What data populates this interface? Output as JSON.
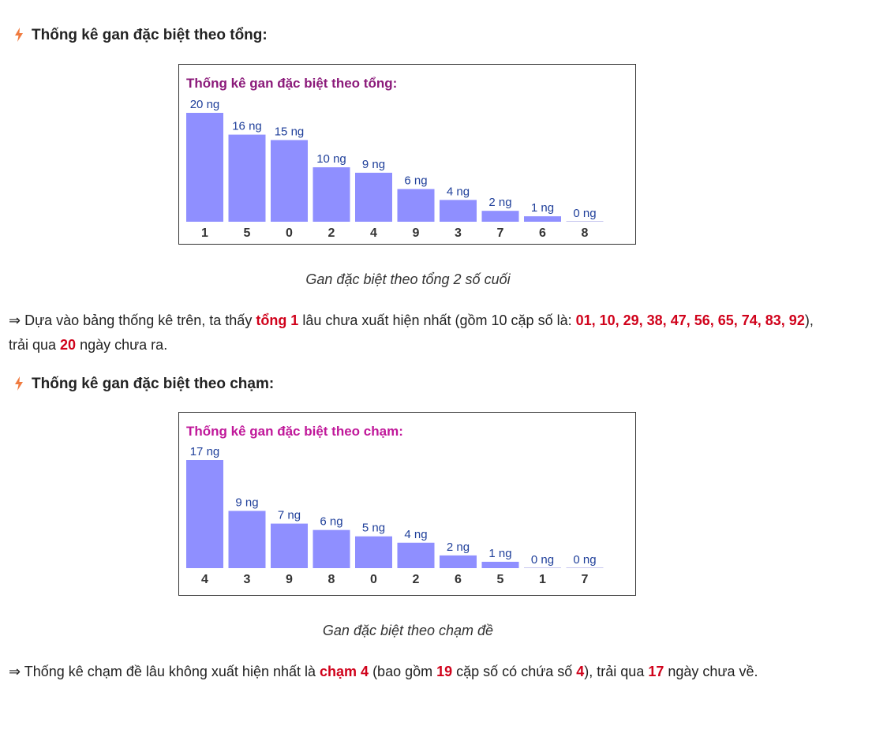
{
  "section1": {
    "heading": "Thống kê gan đặc biệt theo tổng:",
    "caption": "Gan đặc biệt theo tổng 2 số cuối",
    "para": {
      "p1": "⇒ Dựa vào bảng thống kê trên, ta thấy ",
      "h1": "tổng 1",
      "p2": " lâu chưa xuất hiện nhất (gồm 10 cặp số là: ",
      "h2": "01, 10, 29, 38, 47, 56, 65, 74, 83, 92",
      "p3": "), trải qua ",
      "h3": "20",
      "p4": " ngày chưa ra."
    }
  },
  "section2": {
    "heading": "Thống kê gan đặc biệt theo chạm:",
    "caption": "Gan đặc biệt theo chạm đề",
    "para": {
      "p1": "⇒ Thống kê chạm đề lâu không xuất hiện nhất là ",
      "h1": "chạm 4",
      "p2": " (bao gồm ",
      "h2": "19",
      "p3": " cặp số có chứa số ",
      "h3": "4",
      "p4": "), trải qua ",
      "h4": "17",
      "p5": " ngày chưa về."
    }
  },
  "colors": {
    "bar": "#8f8fff",
    "title_tong": "#8b1a7a",
    "title_cham": "#c0189a",
    "label": "#1f3f9a",
    "highlight": "#d0021b"
  },
  "chart_data": [
    {
      "type": "bar",
      "title": "Thống kê gan đặc biệt theo tổng:",
      "categories": [
        "1",
        "5",
        "0",
        "2",
        "4",
        "9",
        "3",
        "7",
        "6",
        "8"
      ],
      "values": [
        20,
        16,
        15,
        10,
        9,
        6,
        4,
        2,
        1,
        0
      ],
      "value_labels": [
        "20 ng",
        "16 ng",
        "15 ng",
        "10 ng",
        "9 ng",
        "6 ng",
        "4 ng",
        "2 ng",
        "1 ng",
        "0 ng"
      ],
      "xlabel": "",
      "ylabel": "",
      "ylim": [
        0,
        20
      ]
    },
    {
      "type": "bar",
      "title": "Thống kê gan đặc biệt theo chạm:",
      "categories": [
        "4",
        "3",
        "9",
        "8",
        "0",
        "2",
        "6",
        "5",
        "1",
        "7"
      ],
      "values": [
        17,
        9,
        7,
        6,
        5,
        4,
        2,
        1,
        0,
        0
      ],
      "value_labels": [
        "17 ng",
        "9 ng",
        "7 ng",
        "6 ng",
        "5 ng",
        "4 ng",
        "2 ng",
        "1 ng",
        "0 ng",
        "0 ng"
      ],
      "xlabel": "",
      "ylabel": "",
      "ylim": [
        0,
        17
      ]
    }
  ]
}
